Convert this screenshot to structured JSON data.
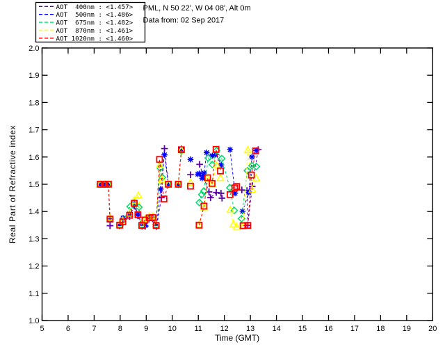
{
  "header": {
    "line1": "PML, N 50 22', W 04 08', Alt 0m",
    "line2": "Data from: 02 Sep 2017"
  },
  "chart_data": {
    "type": "line",
    "title": "",
    "xlabel": "Time (GMT)",
    "ylabel": "Real Part of Refractive index",
    "xlim": [
      5,
      20
    ],
    "ylim": [
      1.0,
      2.0
    ],
    "xticks": [
      "5",
      "6",
      "7",
      "8",
      "9",
      "10",
      "11",
      "12",
      "13",
      "14",
      "15",
      "16",
      "17",
      "18",
      "19",
      "20"
    ],
    "yticks": [
      "1.0",
      "1.1",
      "1.2",
      "1.3",
      "1.4",
      "1.5",
      "1.6",
      "1.7",
      "1.8",
      "1.9",
      "2.0"
    ],
    "grid": false,
    "line_style": "dashed",
    "legend_position": "top-left",
    "axis_color": "#000000",
    "background_color": "#ffffff",
    "series": [
      {
        "name": "AOT 400nm",
        "wavelength_nm": 400,
        "legend_label": "AOT  400nm : <1.457>",
        "mean_value": 1.457,
        "color": "#5D00A8",
        "marker": "plus",
        "segments": [
          [
            [
              7.23,
              1.5
            ],
            [
              7.39,
              1.5
            ],
            [
              7.55,
              1.5
            ],
            [
              7.61,
              1.348
            ]
          ],
          [
            [
              7.98,
              1.348
            ],
            [
              8.1,
              1.358
            ],
            [
              8.36,
              1.382
            ],
            [
              8.54,
              1.42
            ],
            [
              8.68,
              1.384
            ],
            [
              8.84,
              1.346
            ],
            [
              8.96,
              1.346
            ],
            [
              9.11,
              1.372
            ],
            [
              9.25,
              1.374
            ],
            [
              9.4,
              1.345
            ],
            [
              9.58,
              1.451
            ],
            [
              9.7,
              1.631
            ],
            [
              9.85,
              1.5
            ]
          ],
          [
            [
              10.23,
              1.5
            ],
            [
              10.35,
              1.63
            ]
          ],
          [
            [
              10.7,
              1.535
            ]
          ],
          [
            [
              11.05,
              1.573
            ],
            [
              11.18,
              1.532
            ],
            [
              11.41,
              1.472
            ],
            [
              11.47,
              1.451
            ],
            [
              11.69,
              1.47
            ],
            [
              11.87,
              1.467
            ],
            [
              11.91,
              1.449
            ]
          ],
          [
            [
              12.67,
              1.479
            ],
            [
              12.87,
              1.477
            ],
            [
              12.9,
              1.349
            ],
            [
              13.07,
              1.492
            ],
            [
              13.3,
              1.627
            ]
          ]
        ]
      },
      {
        "name": "AOT 500nm",
        "wavelength_nm": 500,
        "legend_label": "AOT  500nm : <1.486>",
        "mean_value": 1.486,
        "color": "#0000FF",
        "marker": "asterisk",
        "segments": [
          [
            [
              7.23,
              1.5
            ],
            [
              7.39,
              1.5
            ],
            [
              7.55,
              1.5
            ],
            [
              7.61,
              1.37
            ]
          ],
          [
            [
              7.98,
              1.352
            ],
            [
              8.11,
              1.376
            ],
            [
              8.36,
              1.39
            ],
            [
              8.54,
              1.428
            ],
            [
              8.68,
              1.39
            ],
            [
              8.83,
              1.35
            ],
            [
              8.96,
              1.348
            ],
            [
              9.11,
              1.375
            ],
            [
              9.25,
              1.376
            ],
            [
              9.4,
              1.35
            ],
            [
              9.55,
              1.482
            ],
            [
              9.7,
              1.608
            ],
            [
              9.85,
              1.5
            ]
          ],
          [
            [
              10.23,
              1.5
            ],
            [
              10.35,
              1.627
            ]
          ],
          [
            [
              10.7,
              1.591
            ]
          ],
          [
            [
              10.98,
              1.537
            ],
            [
              11.04,
              1.539
            ],
            [
              11.15,
              1.522
            ],
            [
              11.22,
              1.541
            ],
            [
              11.32,
              1.616
            ],
            [
              11.54,
              1.605
            ],
            [
              11.68,
              1.61
            ],
            [
              11.88,
              1.571
            ]
          ],
          [
            [
              12.22,
              1.627
            ],
            [
              12.41,
              1.467
            ]
          ],
          [
            [
              12.7,
              1.401
            ],
            [
              12.94,
              1.47
            ],
            [
              13.06,
              1.6
            ],
            [
              13.23,
              1.624
            ]
          ]
        ]
      },
      {
        "name": "AOT 675nm",
        "wavelength_nm": 675,
        "legend_label": "AOT  675nm : <1.482>",
        "mean_value": 1.482,
        "color": "#00D96B",
        "marker": "diamond",
        "segments": [
          [
            [
              7.23,
              1.5
            ],
            [
              7.39,
              1.5
            ],
            [
              7.55,
              1.5
            ],
            [
              7.61,
              1.375
            ]
          ],
          [
            [
              7.98,
              1.352
            ],
            [
              8.1,
              1.364
            ],
            [
              8.38,
              1.418
            ],
            [
              8.54,
              1.432
            ],
            [
              8.72,
              1.416
            ],
            [
              8.83,
              1.352
            ],
            [
              8.95,
              1.37
            ],
            [
              9.11,
              1.378
            ],
            [
              9.25,
              1.38
            ],
            [
              9.38,
              1.352
            ],
            [
              9.53,
              1.56
            ],
            [
              9.62,
              1.525
            ],
            [
              9.85,
              1.5
            ]
          ],
          [
            [
              10.23,
              1.5
            ],
            [
              10.35,
              1.622
            ]
          ],
          [
            [
              11.04,
              1.433
            ],
            [
              11.13,
              1.462
            ],
            [
              11.21,
              1.475
            ],
            [
              11.38,
              1.596
            ],
            [
              11.54,
              1.572
            ],
            [
              11.7,
              1.623
            ],
            [
              11.9,
              1.594
            ],
            [
              12.21,
              1.487
            ],
            [
              12.38,
              1.404
            ]
          ],
          [
            [
              12.66,
              1.374
            ],
            [
              12.88,
              1.55
            ],
            [
              13.06,
              1.568
            ],
            [
              13.23,
              1.565
            ]
          ]
        ]
      },
      {
        "name": "AOT 870nm",
        "wavelength_nm": 870,
        "legend_label": "AOT  870nm : <1.461>",
        "mean_value": 1.461,
        "color": "#FFFF00",
        "marker": "triangle",
        "segments": [
          [
            [
              7.23,
              1.5
            ],
            [
              7.39,
              1.5
            ],
            [
              7.55,
              1.5
            ],
            [
              7.61,
              1.378
            ]
          ],
          [
            [
              7.98,
              1.354
            ],
            [
              8.1,
              1.366
            ],
            [
              8.36,
              1.392
            ],
            [
              8.54,
              1.44
            ],
            [
              8.7,
              1.459
            ],
            [
              8.83,
              1.355
            ],
            [
              8.95,
              1.372
            ],
            [
              9.11,
              1.38
            ],
            [
              9.25,
              1.382
            ],
            [
              9.38,
              1.355
            ],
            [
              9.52,
              1.57
            ],
            [
              9.62,
              1.516
            ],
            [
              9.85,
              1.5
            ]
          ],
          [
            [
              10.23,
              1.5
            ],
            [
              10.35,
              1.625
            ]
          ],
          [
            [
              10.7,
              1.506
            ]
          ],
          [
            [
              11.03,
              1.352
            ],
            [
              11.22,
              1.415
            ],
            [
              11.36,
              1.52
            ],
            [
              11.53,
              1.5
            ],
            [
              11.7,
              1.57
            ],
            [
              11.85,
              1.523
            ]
          ],
          [
            [
              12.23,
              1.406
            ],
            [
              12.35,
              1.354
            ],
            [
              12.47,
              1.344
            ],
            [
              12.72,
              1.348
            ],
            [
              12.9,
              1.625
            ],
            [
              13.07,
              1.48
            ],
            [
              13.22,
              1.522
            ]
          ]
        ]
      },
      {
        "name": "AOT 1020nm",
        "wavelength_nm": 1020,
        "legend_label": "AOT 1020nm : <1.460>",
        "mean_value": 1.46,
        "color": "#FF0000",
        "marker": "square",
        "segments": [
          [
            [
              7.23,
              1.5
            ],
            [
              7.39,
              1.5
            ],
            [
              7.55,
              1.5
            ],
            [
              7.61,
              1.372
            ]
          ],
          [
            [
              7.98,
              1.35
            ],
            [
              8.1,
              1.362
            ],
            [
              8.36,
              1.386
            ],
            [
              8.54,
              1.43
            ],
            [
              8.68,
              1.388
            ],
            [
              8.83,
              1.349
            ],
            [
              8.95,
              1.369
            ],
            [
              9.11,
              1.377
            ],
            [
              9.25,
              1.378
            ],
            [
              9.38,
              1.349
            ],
            [
              9.51,
              1.591
            ],
            [
              9.68,
              1.446
            ],
            [
              9.85,
              1.5
            ]
          ],
          [
            [
              10.23,
              1.5
            ],
            [
              10.35,
              1.627
            ]
          ],
          [
            [
              10.7,
              1.493
            ]
          ],
          [
            [
              11.03,
              1.35
            ],
            [
              11.22,
              1.42
            ],
            [
              11.36,
              1.524
            ],
            [
              11.53,
              1.503
            ],
            [
              11.68,
              1.628
            ],
            [
              11.85,
              1.549
            ]
          ],
          [
            [
              12.22,
              1.462
            ],
            [
              12.4,
              1.487
            ],
            [
              12.47,
              1.492
            ]
          ],
          [
            [
              12.72,
              1.348
            ],
            [
              12.9,
              1.349
            ],
            [
              13.04,
              1.534
            ],
            [
              13.2,
              1.622
            ]
          ]
        ]
      }
    ]
  }
}
